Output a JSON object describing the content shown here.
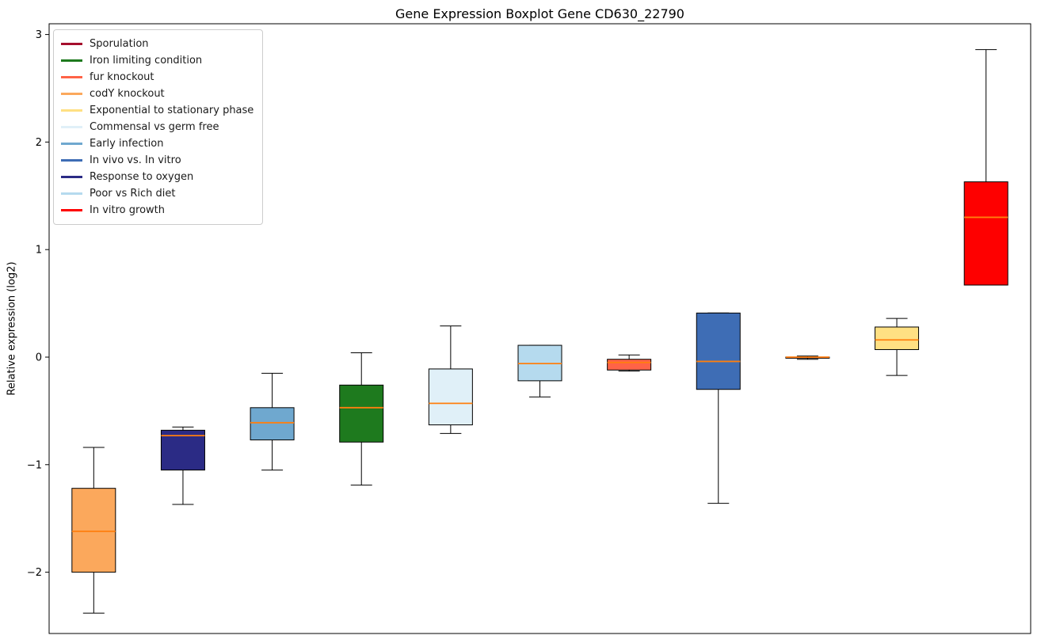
{
  "chart_data": {
    "type": "boxplot",
    "title": "Gene Expression Boxplot Gene CD630_22790",
    "xlabel": "",
    "ylabel": "Relative expression (log2)",
    "ylim": [
      -2.57,
      3.1
    ],
    "y_ticks": [
      3,
      2,
      1,
      0,
      -1,
      -2
    ],
    "grid": false,
    "legend_position": "upper left",
    "median_color": "#ff7f0e",
    "whisker_color": "#000000",
    "box_edge_color": "#000000",
    "legend": [
      {
        "label": "Sporulation",
        "color": "#a50e2d"
      },
      {
        "label": "Iron limiting condition",
        "color": "#1e7a1e"
      },
      {
        "label": "fur knockout",
        "color": "#ff6347"
      },
      {
        "label": "codY knockout",
        "color": "#fba85c"
      },
      {
        "label": "Exponential to stationary phase",
        "color": "#ffe083"
      },
      {
        "label": "Commensal vs germ free",
        "color": "#e0f0f8"
      },
      {
        "label": "Early infection",
        "color": "#6fa8cf"
      },
      {
        "label": "In vivo vs. In vitro",
        "color": "#3e6db5"
      },
      {
        "label": "Response to oxygen",
        "color": "#2b2b85"
      },
      {
        "label": "Poor vs Rich diet",
        "color": "#b5daee"
      },
      {
        "label": "In vitro growth",
        "color": "#fe0000"
      }
    ],
    "boxes": [
      {
        "condition": "codY knockout",
        "color": "#fba85c",
        "whisker_low": -2.38,
        "q1": -2.0,
        "median": -1.62,
        "q3": -1.22,
        "whisker_high": -0.84
      },
      {
        "condition": "Response to oxygen",
        "color": "#2b2b85",
        "whisker_low": -1.37,
        "q1": -1.05,
        "median": -0.73,
        "q3": -0.68,
        "whisker_high": -0.65
      },
      {
        "condition": "Early infection",
        "color": "#6fa8cf",
        "whisker_low": -1.05,
        "q1": -0.77,
        "median": -0.61,
        "q3": -0.47,
        "whisker_high": -0.15
      },
      {
        "condition": "Iron limiting condition",
        "color": "#1e7a1e",
        "whisker_low": -1.19,
        "q1": -0.79,
        "median": -0.47,
        "q3": -0.26,
        "whisker_high": 0.04
      },
      {
        "condition": "Commensal vs germ free",
        "color": "#e0f0f8",
        "whisker_low": -0.71,
        "q1": -0.63,
        "median": -0.43,
        "q3": -0.11,
        "whisker_high": 0.29
      },
      {
        "condition": "Poor vs Rich diet",
        "color": "#b5daee",
        "whisker_low": -0.37,
        "q1": -0.22,
        "median": -0.06,
        "q3": 0.11,
        "whisker_high": 0.11
      },
      {
        "condition": "fur knockout",
        "color": "#ff6347",
        "whisker_low": -0.13,
        "q1": -0.12,
        "median": -0.05,
        "q3": -0.02,
        "whisker_high": 0.02
      },
      {
        "condition": "In vivo vs. In vitro",
        "color": "#3e6db5",
        "whisker_low": -1.36,
        "q1": -0.3,
        "median": -0.04,
        "q3": 0.41,
        "whisker_high": 0.41
      },
      {
        "condition": "Sporulation",
        "color": "#a50e2d",
        "whisker_low": -0.02,
        "q1": -0.01,
        "median": 0.0,
        "q3": 0.0,
        "whisker_high": 0.01
      },
      {
        "condition": "Exponential to stationary phase",
        "color": "#ffe083",
        "whisker_low": -0.17,
        "q1": 0.07,
        "median": 0.16,
        "q3": 0.28,
        "whisker_high": 0.36
      },
      {
        "condition": "In vitro growth",
        "color": "#fe0000",
        "whisker_low": 0.67,
        "q1": 0.67,
        "median": 1.3,
        "q3": 1.63,
        "whisker_high": 2.86
      }
    ]
  }
}
